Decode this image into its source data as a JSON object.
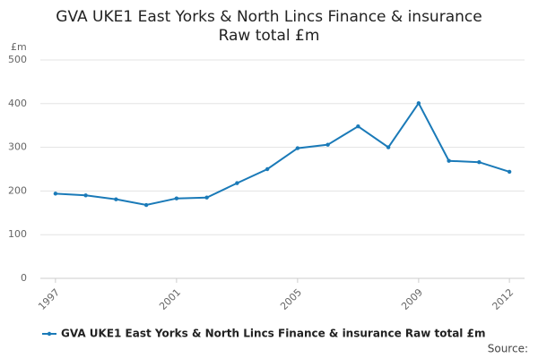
{
  "chart_data": {
    "type": "line",
    "title": "GVA UKE1 East Yorks & North Lincs Finance & insurance",
    "subtitle": "Raw total £m",
    "ylabel": "£m",
    "source": "Source:",
    "x": [
      1997,
      1998,
      1999,
      2000,
      2001,
      2002,
      2003,
      2004,
      2005,
      2006,
      2007,
      2008,
      2009,
      2010,
      2011,
      2012
    ],
    "series": [
      {
        "name": "GVA UKE1 East Yorks & North Lincs Finance & insurance Raw total £m",
        "color": "#1a7ab8",
        "values": [
          194,
          190,
          181,
          168,
          183,
          185,
          218,
          250,
          298,
          306,
          348,
          300,
          401,
          269,
          266,
          244
        ]
      }
    ],
    "xlim": [
      1996.5,
      2012.5
    ],
    "xticks": [
      1997,
      2001,
      2005,
      2009,
      2012
    ],
    "ylim": [
      0,
      500
    ],
    "yticks": [
      0,
      100,
      200,
      300,
      400,
      500
    ],
    "grid": true
  }
}
